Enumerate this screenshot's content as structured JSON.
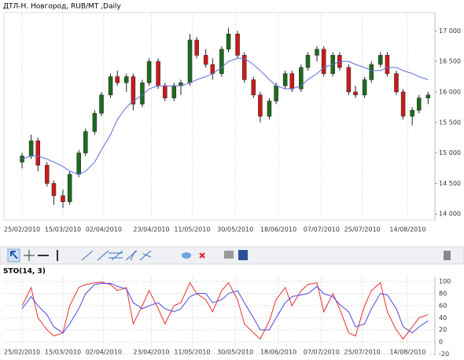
{
  "chart_data": [
    {
      "type": "candlestick",
      "title": "ДТЛ-Н. Новгород,  RUB/MT ,Daily",
      "x": [
        "2010-02-25",
        "2010-03-01",
        "2010-03-04",
        "2010-03-08",
        "2010-03-11",
        "2010-03-15",
        "2010-03-18",
        "2010-03-22",
        "2010-03-25",
        "2010-03-29",
        "2010-04-01",
        "2010-04-05",
        "2010-04-08",
        "2010-04-12",
        "2010-04-15",
        "2010-04-19",
        "2010-04-22",
        "2010-04-26",
        "2010-04-29",
        "2010-05-03",
        "2010-05-06",
        "2010-05-10",
        "2010-05-13",
        "2010-05-17",
        "2010-05-20",
        "2010-05-24",
        "2010-05-27",
        "2010-05-31",
        "2010-06-03",
        "2010-06-07",
        "2010-06-10",
        "2010-06-14",
        "2010-06-17",
        "2010-06-21",
        "2010-06-24",
        "2010-06-28",
        "2010-07-01",
        "2010-07-05",
        "2010-07-08",
        "2010-07-12",
        "2010-07-15",
        "2010-07-19",
        "2010-07-22",
        "2010-07-26",
        "2010-07-29",
        "2010-08-02",
        "2010-08-05",
        "2010-08-09",
        "2010-08-12",
        "2010-08-16",
        "2010-08-19",
        "2010-08-23"
      ],
      "open": [
        14850,
        14950,
        15200,
        14800,
        14500,
        14300,
        14200,
        14650,
        15000,
        15350,
        15650,
        15950,
        16250,
        16150,
        16250,
        15800,
        16150,
        16500,
        16100,
        15900,
        16100,
        16150,
        16850,
        16600,
        16450,
        16300,
        16700,
        16950,
        16600,
        16200,
        15950,
        15600,
        15850,
        16100,
        16300,
        16050,
        16400,
        16600,
        16700,
        16300,
        16600,
        16400,
        16000,
        15950,
        16200,
        16450,
        16600,
        16300,
        16000,
        15600,
        15700,
        15900
      ],
      "high": [
        15000,
        15300,
        15250,
        14850,
        14550,
        14400,
        14700,
        15050,
        15400,
        15700,
        16000,
        16300,
        16350,
        16300,
        16300,
        16200,
        16550,
        16550,
        16150,
        16150,
        16200,
        16950,
        16900,
        16700,
        16550,
        16750,
        17050,
        17000,
        16650,
        16250,
        16000,
        15900,
        16150,
        16350,
        16350,
        16450,
        16650,
        16750,
        16750,
        16650,
        16650,
        16450,
        16100,
        16250,
        16500,
        16650,
        16650,
        16350,
        16050,
        15750,
        15950,
        16000
      ],
      "low": [
        14750,
        14900,
        14700,
        14450,
        14150,
        14100,
        14150,
        14600,
        14950,
        15300,
        15600,
        15900,
        16100,
        16000,
        15700,
        15750,
        16100,
        16050,
        15850,
        15850,
        15950,
        16100,
        16550,
        16400,
        16200,
        16250,
        16650,
        16550,
        16150,
        15900,
        15500,
        15550,
        15800,
        16050,
        16000,
        16000,
        16350,
        16500,
        16250,
        16250,
        16350,
        15950,
        15900,
        15900,
        16150,
        16400,
        16250,
        15950,
        15550,
        15450,
        15650,
        15800
      ],
      "close": [
        14950,
        15200,
        14800,
        14500,
        14300,
        14200,
        14650,
        15000,
        15350,
        15650,
        15950,
        16250,
        16150,
        16250,
        15800,
        16150,
        16500,
        16100,
        15900,
        16100,
        16150,
        16850,
        16600,
        16450,
        16300,
        16700,
        16950,
        16600,
        16200,
        15950,
        15600,
        15850,
        16100,
        16300,
        16050,
        16400,
        16600,
        16700,
        16300,
        16600,
        16400,
        16000,
        15950,
        16200,
        16450,
        16600,
        16300,
        16000,
        15600,
        15700,
        15900,
        15950
      ],
      "up_color": "#1e6b1e",
      "down_color": "#cc1a1a",
      "ma_color": "#5b6ee1",
      "ma_values": [
        14900,
        14950,
        14950,
        14900,
        14850,
        14780,
        14700,
        14650,
        14700,
        14850,
        15050,
        15300,
        15550,
        15750,
        15850,
        15950,
        16050,
        16100,
        16100,
        16100,
        16100,
        16150,
        16200,
        16250,
        16300,
        16400,
        16500,
        16550,
        16550,
        16450,
        16350,
        16200,
        16100,
        16050,
        16050,
        16100,
        16200,
        16300,
        16400,
        16450,
        16500,
        16500,
        16450,
        16400,
        16350,
        16350,
        16400,
        16400,
        16350,
        16300,
        16250,
        16200
      ],
      "xlim": [
        "2010-02-17",
        "2010-08-26"
      ],
      "xticks": [
        {
          "value": "2010-02-25",
          "label": "25/02/2010"
        },
        {
          "value": "2010-03-15",
          "label": "15/03/2010"
        },
        {
          "value": "2010-04-02",
          "label": "02/04/2010"
        },
        {
          "value": "2010-04-23",
          "label": "23/04/2010"
        },
        {
          "value": "2010-05-11",
          "label": "11/05/2010"
        },
        {
          "value": "2010-05-30",
          "label": "30/05/2010"
        },
        {
          "value": "2010-06-18",
          "label": "18/06/2010"
        },
        {
          "value": "2010-07-07",
          "label": "07/07/2010"
        },
        {
          "value": "2010-07-25",
          "label": "25/07/2010"
        },
        {
          "value": "2010-08-14",
          "label": "14/08/2010"
        }
      ],
      "ylim": [
        13900,
        17300
      ],
      "yticks": [
        {
          "value": 14000,
          "label": "14 000"
        },
        {
          "value": 14500,
          "label": "14 500"
        },
        {
          "value": 15000,
          "label": "15 000"
        },
        {
          "value": 15500,
          "label": "15 500"
        },
        {
          "value": 16000,
          "label": "16 000"
        },
        {
          "value": 16500,
          "label": "16 500"
        },
        {
          "value": 17000,
          "label": "17 000"
        }
      ],
      "grid": true
    },
    {
      "type": "line",
      "title": "STO(14, 3)",
      "x": [
        "2010-02-25",
        "2010-03-01",
        "2010-03-04",
        "2010-03-08",
        "2010-03-11",
        "2010-03-15",
        "2010-03-18",
        "2010-03-22",
        "2010-03-25",
        "2010-03-29",
        "2010-04-01",
        "2010-04-05",
        "2010-04-08",
        "2010-04-12",
        "2010-04-15",
        "2010-04-19",
        "2010-04-22",
        "2010-04-26",
        "2010-04-29",
        "2010-05-03",
        "2010-05-06",
        "2010-05-10",
        "2010-05-13",
        "2010-05-17",
        "2010-05-20",
        "2010-05-24",
        "2010-05-27",
        "2010-05-31",
        "2010-06-03",
        "2010-06-07",
        "2010-06-10",
        "2010-06-14",
        "2010-06-17",
        "2010-06-21",
        "2010-06-24",
        "2010-06-28",
        "2010-07-01",
        "2010-07-05",
        "2010-07-08",
        "2010-07-12",
        "2010-07-15",
        "2010-07-19",
        "2010-07-22",
        "2010-07-26",
        "2010-07-29",
        "2010-08-02",
        "2010-08-05",
        "2010-08-09",
        "2010-08-12",
        "2010-08-16",
        "2010-08-19",
        "2010-08-23"
      ],
      "series": [
        {
          "color": "#e53030",
          "values": [
            60,
            90,
            40,
            20,
            10,
            15,
            60,
            90,
            95,
            98,
            99,
            95,
            85,
            90,
            30,
            60,
            85,
            55,
            30,
            60,
            65,
            98,
            80,
            70,
            50,
            85,
            98,
            70,
            30,
            15,
            5,
            35,
            70,
            90,
            60,
            85,
            95,
            98,
            50,
            80,
            55,
            15,
            10,
            60,
            85,
            98,
            50,
            20,
            5,
            25,
            40,
            45
          ]
        },
        {
          "color": "#4a4ae0",
          "values": [
            55,
            75,
            60,
            45,
            25,
            15,
            30,
            55,
            80,
            95,
            97,
            97,
            92,
            88,
            65,
            55,
            60,
            65,
            55,
            50,
            55,
            75,
            80,
            80,
            65,
            70,
            80,
            85,
            65,
            40,
            20,
            20,
            40,
            65,
            75,
            78,
            80,
            92,
            80,
            75,
            62,
            50,
            25,
            30,
            55,
            80,
            78,
            55,
            25,
            15,
            25,
            35
          ]
        }
      ],
      "xlim": [
        "2010-02-17",
        "2010-08-26"
      ],
      "xticks": [
        {
          "value": "2010-02-25",
          "label": "25/02/2010"
        },
        {
          "value": "2010-03-15",
          "label": "15/03/2010"
        },
        {
          "value": "2010-04-02",
          "label": "02/04/2010"
        },
        {
          "value": "2010-04-23",
          "label": "23/04/2010"
        },
        {
          "value": "2010-05-11",
          "label": "11/05/2010"
        },
        {
          "value": "2010-05-30",
          "label": "30/05/2010"
        },
        {
          "value": "2010-06-18",
          "label": "18/06/2010"
        },
        {
          "value": "2010-07-07",
          "label": "07/07/2010"
        },
        {
          "value": "2010-07-25",
          "label": "25/07/2010"
        },
        {
          "value": "2010-08-14",
          "label": "14/08/2010"
        }
      ],
      "ylim": [
        -22,
        108
      ],
      "yticks": [
        -20,
        0,
        20,
        40,
        60,
        80,
        100
      ],
      "grid": true
    }
  ]
}
